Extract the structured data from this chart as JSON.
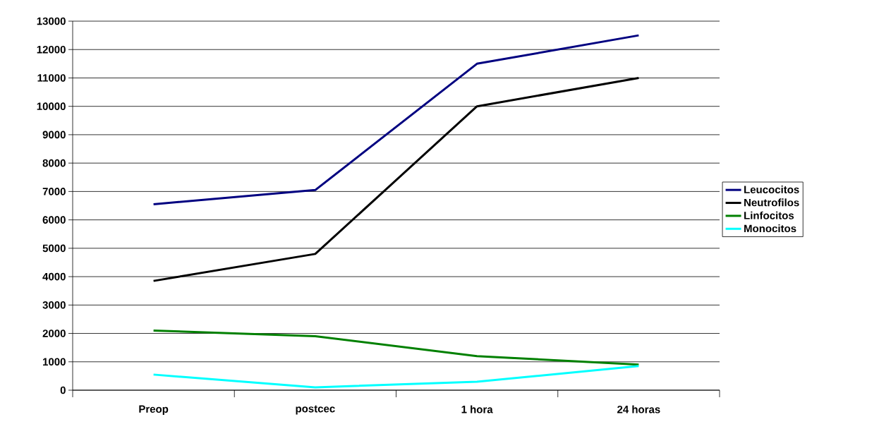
{
  "chart_data": {
    "type": "line",
    "categories": [
      "Preop",
      "postcec",
      "1 hora",
      "24 horas"
    ],
    "series": [
      {
        "name": "Leucocitos",
        "color": "#000080",
        "values": [
          6550,
          7050,
          11500,
          12500
        ]
      },
      {
        "name": "Neutrofilos",
        "color": "#000000",
        "values": [
          3850,
          4800,
          10000,
          11000
        ]
      },
      {
        "name": "Linfocitos",
        "color": "#008000",
        "values": [
          2100,
          1900,
          1200,
          900
        ]
      },
      {
        "name": "Monocitos",
        "color": "#00ffff",
        "values": [
          550,
          100,
          300,
          850
        ]
      }
    ],
    "ylim": [
      0,
      13000
    ],
    "yticks": [
      0,
      1000,
      2000,
      3000,
      4000,
      5000,
      6000,
      7000,
      8000,
      9000,
      10000,
      11000,
      12000,
      13000
    ],
    "grid": "y",
    "legend": "right"
  }
}
